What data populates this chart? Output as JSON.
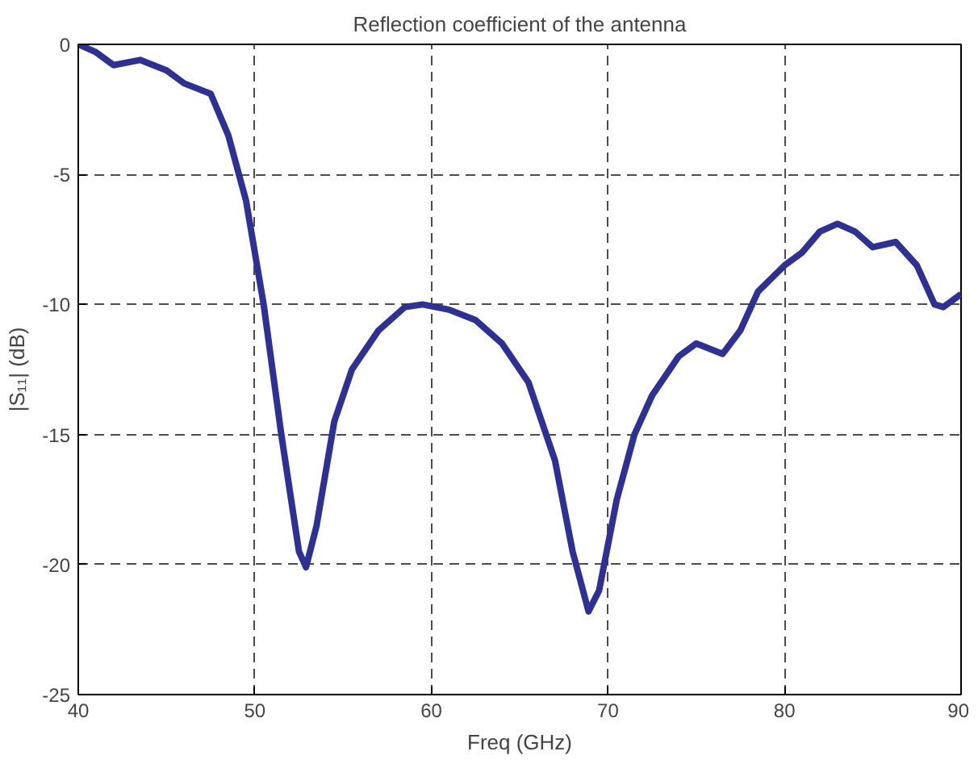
{
  "chart_data": {
    "type": "line",
    "title": "Reflection coefficient of the antenna",
    "xlabel": "Freq (GHz)",
    "ylabel": "|S₁₁| (dB)",
    "xlim": [
      40,
      90
    ],
    "ylim": [
      -25,
      0
    ],
    "xticks": [
      40,
      50,
      60,
      70,
      80,
      90
    ],
    "yticks": [
      -25,
      -20,
      -15,
      -10,
      -5,
      0
    ],
    "grid": true,
    "line_style": "solid",
    "series": [
      {
        "color": "#2e3192",
        "x": [
          40,
          41,
          42,
          43.5,
          45,
          46,
          47.5,
          48.5,
          49.5,
          50.5,
          51.5,
          52.5,
          52.9,
          53.5,
          54.5,
          55.5,
          57,
          58.5,
          59.5,
          61,
          62.5,
          64,
          65.5,
          67,
          68,
          68.9,
          69.5,
          70.5,
          71.5,
          72.5,
          74,
          75,
          76.5,
          77.5,
          78.5,
          80,
          81,
          82,
          83,
          84,
          85,
          86.3,
          87.5,
          88.5,
          89,
          90
        ],
        "values": [
          0,
          -0.3,
          -0.8,
          -0.6,
          -1.0,
          -1.5,
          -1.9,
          -3.5,
          -6,
          -10,
          -15,
          -19.5,
          -20.1,
          -18.5,
          -14.5,
          -12.5,
          -11,
          -10.1,
          -10,
          -10.2,
          -10.6,
          -11.5,
          -13,
          -16,
          -19.5,
          -21.8,
          -21,
          -17.5,
          -15,
          -13.5,
          -12,
          -11.5,
          -11.9,
          -11,
          -9.5,
          -8.5,
          -8,
          -7.2,
          -6.9,
          -7.2,
          -7.8,
          -7.6,
          -8.5,
          -10,
          -10.1,
          -9.6
        ]
      }
    ]
  }
}
